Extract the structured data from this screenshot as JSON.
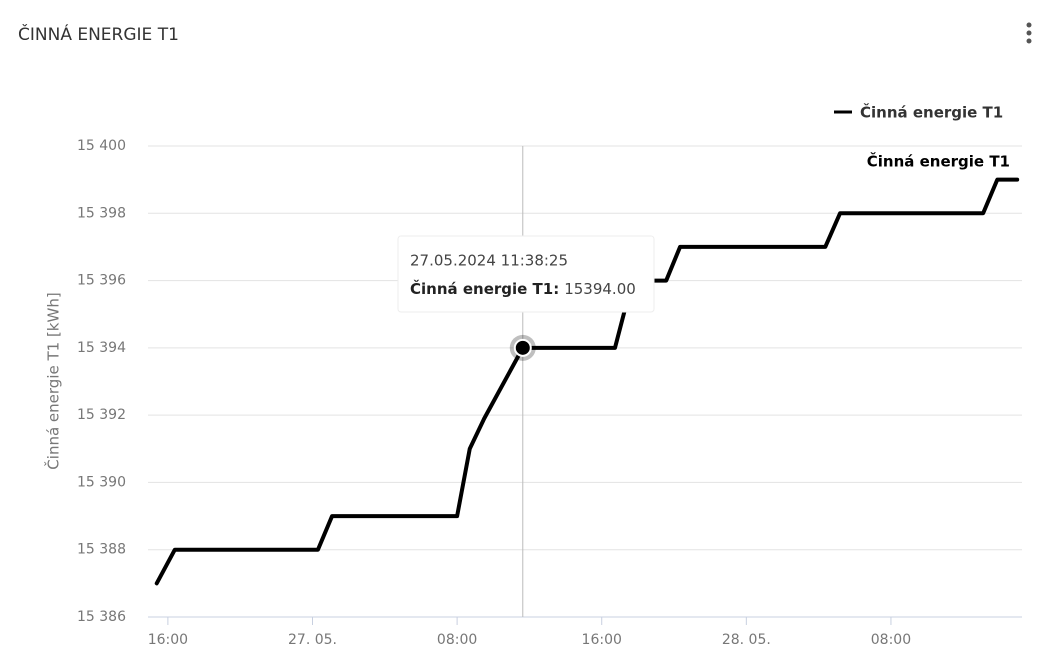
{
  "title": "ČINNÁ ENERGIE T1",
  "chart_data": {
    "type": "line",
    "y_label": "Činná energie T1 [kWh]",
    "x": [
      "2024-05-26T15:23",
      "2024-05-26T16:23",
      "2024-05-27T00:18",
      "2024-05-27T01:05",
      "2024-05-27T08:00",
      "2024-05-27T08:42",
      "2024-05-27T09:30",
      "2024-05-27T11:38",
      "2024-05-27T16:44",
      "2024-05-27T17:42",
      "2024-05-27T19:34",
      "2024-05-27T20:20",
      "2024-05-28T04:22",
      "2024-05-28T05:11",
      "2024-05-28T13:06",
      "2024-05-28T13:53",
      "2024-05-28T14:59"
    ],
    "series": [
      {
        "name": "Činná energie T1",
        "color": "#000000",
        "values": [
          15387,
          15388,
          15388,
          15389,
          15389,
          15391,
          15391.9,
          15394,
          15394,
          15396,
          15396,
          15397,
          15397,
          15398,
          15398,
          15399,
          15399
        ]
      }
    ],
    "xlim": [
      "2024-05-26T14:54",
      "2024-05-28T15:15"
    ],
    "xticks": [
      {
        "value": "2024-05-26T16:00",
        "label": "16:00"
      },
      {
        "value": "2024-05-27T00:00",
        "label": "27. 05."
      },
      {
        "value": "2024-05-27T08:00",
        "label": "08:00"
      },
      {
        "value": "2024-05-27T16:00",
        "label": "16:00"
      },
      {
        "value": "2024-05-28T00:00",
        "label": "28. 05."
      },
      {
        "value": "2024-05-28T08:00",
        "label": "08:00"
      }
    ],
    "ylim": [
      15386,
      15400
    ],
    "yticks": [
      {
        "value": 15386,
        "label": "15 386"
      },
      {
        "value": 15388,
        "label": "15 388"
      },
      {
        "value": 15390,
        "label": "15 390"
      },
      {
        "value": 15392,
        "label": "15 392"
      },
      {
        "value": 15394,
        "label": "15 394"
      },
      {
        "value": 15396,
        "label": "15 396"
      },
      {
        "value": 15398,
        "label": "15 398"
      },
      {
        "value": 15400,
        "label": "15 400"
      }
    ],
    "grid": true,
    "legend": "top-right",
    "tooltip": {
      "point": 7,
      "title": "27.05.2024 11:38:25",
      "label": "Činná energie T1:",
      "value": "15394.00"
    }
  }
}
